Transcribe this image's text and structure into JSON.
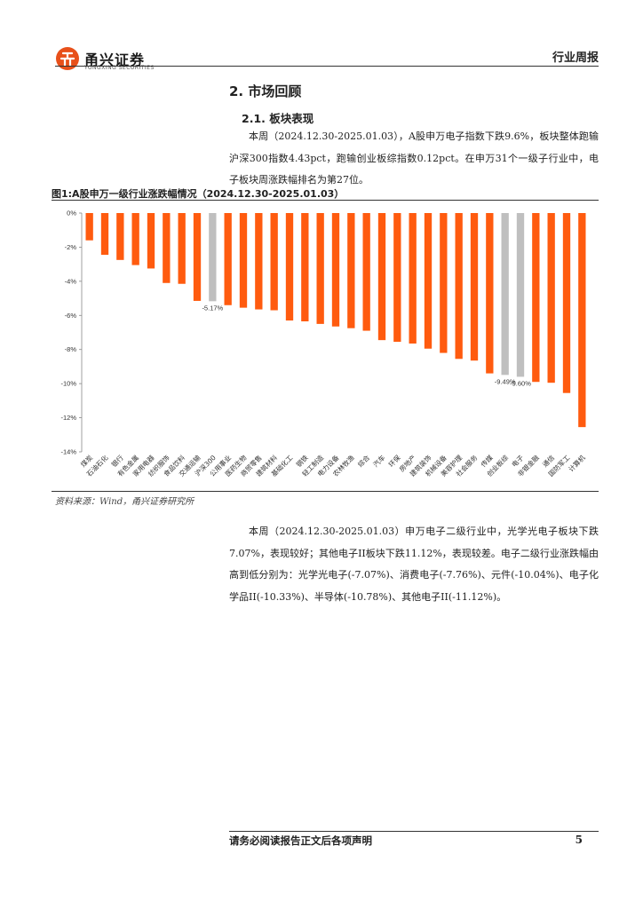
{
  "header": {
    "company_cn": "甬兴证券",
    "company_en": "YONGXING SECURITIES",
    "report_type": "行业周报"
  },
  "section": {
    "title": "2. 市场回顾",
    "subtitle": "2.1. 板块表现"
  },
  "para1": "本周（2024.12.30-2025.01.03），A股申万电子指数下跌9.6%，板块整体跑输沪深300指数4.43pct，跑输创业板综指数0.12pct。在申万31个一级子行业中，电子板块周涨跌幅排名为第27位。",
  "figure": {
    "title": "图1:A股申万一级行业涨跌幅情况（2024.12.30-2025.01.03）",
    "source": "资料来源：Wind，甬兴证券研究所"
  },
  "para2": "本周（2024.12.30-2025.01.03）申万电子二级行业中，光学光电子板块下跌7.07%，表现较好；其他电子II板块下跌11.12%，表现较差。电子二级行业涨跌幅由高到低分别为：光学光电子(-7.07%)、消费电子(-7.76%)、元件(-10.04%)、电子化学品II(-10.33%)、半导体(-10.78%)、其他电子II(-11.12%)。",
  "footer": {
    "note": "请务必阅读报告正文后各项声明",
    "page": "5"
  },
  "colors": {
    "bar": "#FF5B0F",
    "highlight": "#BFBFBF",
    "logo": "#E8501A"
  },
  "chart_data": {
    "type": "bar",
    "title": "A股申万一级行业涨跌幅情况（2024.12.30-2025.01.03）",
    "xlabel": "",
    "ylabel": "",
    "ylim": [
      -14,
      0
    ],
    "ytick_step": 2,
    "ytick_suffix": "%",
    "grid": false,
    "categories": [
      "煤炭",
      "石油石化",
      "银行",
      "有色金属",
      "家用电器",
      "纺织服饰",
      "食品饮料",
      "交通运输",
      "沪深300",
      "公用事业",
      "医药生物",
      "商贸零售",
      "建筑材料",
      "基础化工",
      "钢铁",
      "轻工制造",
      "电力设备",
      "农林牧渔",
      "综合",
      "汽车",
      "环保",
      "房地产",
      "建筑装饰",
      "机械设备",
      "美容护理",
      "社会服务",
      "传媒",
      "创业板综",
      "电子",
      "非银金融",
      "通信",
      "国防军工",
      "计算机"
    ],
    "values": [
      -1.6,
      -2.45,
      -2.75,
      -3.05,
      -3.25,
      -4.1,
      -4.15,
      -5.15,
      -5.17,
      -5.4,
      -5.55,
      -5.65,
      -5.7,
      -6.3,
      -6.35,
      -6.5,
      -6.65,
      -6.75,
      -6.9,
      -7.45,
      -7.55,
      -7.65,
      -7.95,
      -8.2,
      -8.55,
      -8.65,
      -9.4,
      -9.49,
      -9.6,
      -9.9,
      -9.95,
      -10.55,
      -12.55
    ],
    "highlighted": [
      "沪深300",
      "创业板综",
      "电子"
    ],
    "data_labels": [
      {
        "category": "沪深300",
        "text": "-5.17%"
      },
      {
        "category": "创业板综",
        "text": "-9.49%"
      },
      {
        "category": "电子",
        "text": "-9.60%"
      }
    ]
  }
}
